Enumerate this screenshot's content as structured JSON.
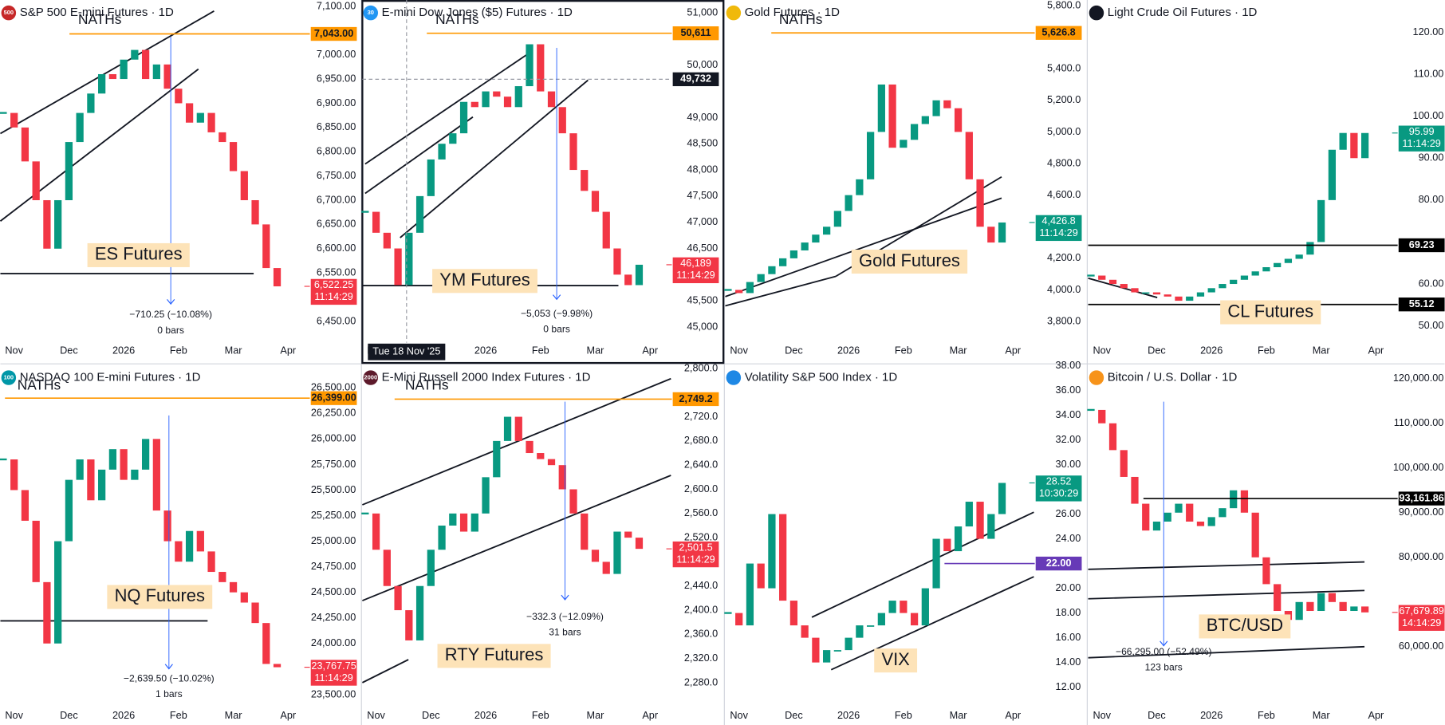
{
  "chart_data": [
    {
      "type": "candle",
      "icon": "500",
      "title": "S&P 500 E-mini Futures · 1D",
      "categories": [
        null,
        "Nov",
        null,
        null,
        null,
        null,
        "Dec",
        null,
        null,
        null,
        null,
        "2026",
        null,
        null,
        null,
        null,
        "Feb",
        null,
        null,
        null,
        null,
        "Mar",
        null,
        null,
        null,
        null,
        "Apr"
      ],
      "values": [
        6880,
        6850,
        6780,
        6700,
        6600,
        6700,
        6820,
        6880,
        6920,
        6960,
        6950,
        6990,
        7010,
        6950,
        6980,
        6930,
        6900,
        6860,
        6880,
        6840,
        6820,
        6760,
        6700,
        6650,
        6560,
        6522.25,
        null
      ],
      "up_color": "#089981",
      "down_color": "#f23645",
      "ylim": [
        6406,
        7113
      ],
      "yticks": [
        {
          "value": 7100,
          "label": "7,100.00"
        },
        {
          "value": 7000,
          "label": "7,000.00"
        },
        {
          "value": 6950,
          "label": "6,950.00"
        },
        {
          "value": 6900,
          "label": "6,900.00"
        },
        {
          "value": 6850,
          "label": "6,850.00"
        },
        {
          "value": 6800,
          "label": "6,800.00"
        },
        {
          "value": 6750,
          "label": "6,750.00"
        },
        {
          "value": 6700,
          "label": "6,700.00"
        },
        {
          "value": 6650,
          "label": "6,650.00"
        },
        {
          "value": 6600,
          "label": "6,600.00"
        },
        {
          "value": 6550,
          "label": "6,550.00"
        },
        {
          "value": 6450,
          "label": "6,450.00"
        }
      ],
      "levels": [
        {
          "value": 7043,
          "label": "7,043.00",
          "color": "#ff9800"
        }
      ],
      "last": {
        "value": 6522.25,
        "label": "6,522.25",
        "timer": "11:14:29",
        "color": "#f23645"
      },
      "annotations": {
        "label": "ES Futures",
        "high": "NATHs",
        "measure": "−710.25 (−10.08%)",
        "bars": "0 bars"
      }
    },
    {
      "type": "candle",
      "icon": "30",
      "title": "E-mini Dow Jones ($5) Futures · 1D",
      "categories": [
        null,
        "Nov",
        null,
        null,
        null,
        null,
        "Dec",
        null,
        null,
        null,
        null,
        "2026",
        null,
        null,
        null,
        null,
        "Feb",
        null,
        null,
        null,
        null,
        "Mar",
        null,
        null,
        null,
        null,
        "Apr"
      ],
      "values": [
        47200,
        46800,
        46500,
        45800,
        46800,
        47500,
        48200,
        48500,
        48700,
        49300,
        49200,
        49500,
        49400,
        49200,
        49600,
        50400,
        49500,
        49200,
        48700,
        48000,
        47600,
        47200,
        46500,
        46000,
        45800,
        46189,
        null
      ],
      "up_color": "#089981",
      "down_color": "#f23645",
      "ylim": [
        44700,
        51246
      ],
      "yticks": [
        {
          "value": 51000,
          "label": "51,000"
        },
        {
          "value": 50000,
          "label": "50,000"
        },
        {
          "value": 49000,
          "label": "49,000"
        },
        {
          "value": 48500,
          "label": "48,500"
        },
        {
          "value": 48000,
          "label": "48,000"
        },
        {
          "value": 47500,
          "label": "47,500"
        },
        {
          "value": 47000,
          "label": "47,000"
        },
        {
          "value": 46500,
          "label": "46,500"
        },
        {
          "value": 45500,
          "label": "45,500"
        },
        {
          "value": 45000,
          "label": "45,000"
        }
      ],
      "levels": [
        {
          "value": 50611,
          "label": "50,611",
          "color": "#ff9800"
        }
      ],
      "last": {
        "value": 46189,
        "label": "46,189",
        "timer": "11:14:29",
        "color": "#f23645"
      },
      "crosshair": {
        "value": 49732,
        "label": "49,732",
        "date": "Tue 18 Nov '25"
      },
      "annotations": {
        "label": "YM Futures",
        "high": "NATHs",
        "measure": "−5,053 (−9.98%)",
        "bars": "0 bars"
      }
    },
    {
      "type": "candle",
      "title": "Gold Futures · 1D",
      "categories": [
        null,
        "Nov",
        null,
        null,
        null,
        null,
        "Dec",
        null,
        null,
        null,
        null,
        "2026",
        null,
        null,
        null,
        null,
        "Feb",
        null,
        null,
        null,
        null,
        "Mar",
        null,
        null,
        null,
        null,
        "Apr"
      ],
      "values": [
        4000,
        3980,
        4050,
        4100,
        4150,
        4200,
        4250,
        4300,
        4350,
        4400,
        4500,
        4600,
        4700,
        5000,
        5300,
        4900,
        4950,
        5050,
        5100,
        5200,
        5150,
        5000,
        4700,
        4400,
        4300,
        4426.8,
        null
      ],
      "up_color": "#089981",
      "down_color": "#f23645",
      "ylim": [
        3666,
        5835
      ],
      "yticks": [
        {
          "value": 5800,
          "label": "5,800.0"
        },
        {
          "value": 5400,
          "label": "5,400.0"
        },
        {
          "value": 5200,
          "label": "5,200.0"
        },
        {
          "value": 5000,
          "label": "5,000.0"
        },
        {
          "value": 4800,
          "label": "4,800.0"
        },
        {
          "value": 4600,
          "label": "4,600.0"
        },
        {
          "value": 4200,
          "label": "4,200.0"
        },
        {
          "value": 4000,
          "label": "4,000.0"
        },
        {
          "value": 3800,
          "label": "3,800.0"
        }
      ],
      "levels": [
        {
          "value": 5626.8,
          "label": "5,626.8",
          "color": "#ff9800"
        }
      ],
      "last": {
        "value": 4426.8,
        "label": "4,426.8",
        "timer": "11:14:29",
        "color": "#089981"
      },
      "annotations": {
        "label": "Gold Futures",
        "high": "NATHs"
      }
    },
    {
      "type": "candle",
      "title": "Light Crude Oil Futures · 1D",
      "categories": [
        null,
        "Nov",
        null,
        null,
        null,
        null,
        "Dec",
        null,
        null,
        null,
        null,
        "2026",
        null,
        null,
        null,
        null,
        "Feb",
        null,
        null,
        null,
        null,
        "Mar",
        null,
        null,
        null,
        null,
        "Apr"
      ],
      "values": [
        62,
        61,
        60,
        59,
        58,
        58,
        57.5,
        57,
        56,
        57,
        58,
        59,
        60,
        61,
        62,
        63,
        64,
        65,
        66,
        67,
        70,
        80,
        92,
        96,
        90,
        95.99,
        null
      ],
      "up_color": "#089981",
      "down_color": "#f23645",
      "ylim": [
        46.0,
        127.7
      ],
      "yticks": [
        {
          "value": 120,
          "label": "120.00"
        },
        {
          "value": 110,
          "label": "110.00"
        },
        {
          "value": 100,
          "label": "100.00"
        },
        {
          "value": 90,
          "label": "90.00"
        },
        {
          "value": 80,
          "label": "80.00"
        },
        {
          "value": 60,
          "label": "60.00"
        },
        {
          "value": 50,
          "label": "50.00"
        }
      ],
      "levels": [
        {
          "value": 69.23,
          "label": "69.23",
          "color": "#000000"
        },
        {
          "value": 55.12,
          "label": "55.12",
          "color": "#000000"
        }
      ],
      "last": {
        "value": 95.99,
        "label": "95.99",
        "timer": "11:14:29",
        "color": "#089981"
      },
      "annotations": {
        "label": "CL Futures"
      }
    },
    {
      "type": "candle",
      "icon": "100",
      "title": "NASDAQ 100 E-mini Futures · 1D",
      "categories": [
        null,
        "Nov",
        null,
        null,
        null,
        null,
        "Dec",
        null,
        null,
        null,
        null,
        "2026",
        null,
        null,
        null,
        null,
        "Feb",
        null,
        null,
        null,
        null,
        "Mar",
        null,
        null,
        null,
        null,
        "Apr"
      ],
      "values": [
        25800,
        25500,
        25200,
        24600,
        24000,
        25000,
        25600,
        25800,
        25400,
        25700,
        25900,
        25600,
        25700,
        26000,
        25300,
        25000,
        24800,
        25100,
        24900,
        24700,
        24600,
        24500,
        24400,
        24200,
        23800,
        23767.75,
        null
      ],
      "up_color": "#089981",
      "down_color": "#f23645",
      "ylim": [
        23374,
        26725
      ],
      "yticks": [
        {
          "value": 26500,
          "label": "26,500.00"
        },
        {
          "value": 26250,
          "label": "26,250.00"
        },
        {
          "value": 26000,
          "label": "26,000.00"
        },
        {
          "value": 25750,
          "label": "25,750.00"
        },
        {
          "value": 25500,
          "label": "25,500.00"
        },
        {
          "value": 25250,
          "label": "25,250.00"
        },
        {
          "value": 25000,
          "label": "25,000.00"
        },
        {
          "value": 24750,
          "label": "24,750.00"
        },
        {
          "value": 24500,
          "label": "24,500.00"
        },
        {
          "value": 24250,
          "label": "24,250.00"
        },
        {
          "value": 24000,
          "label": "24,000.00"
        },
        {
          "value": 23500,
          "label": "23,500.00"
        }
      ],
      "levels": [
        {
          "value": 26399,
          "label": "26,399.00",
          "color": "#ff9800"
        }
      ],
      "last": {
        "value": 23767.75,
        "label": "23,767.75",
        "timer": "11:14:29",
        "color": "#f23645"
      },
      "annotations": {
        "label": "NQ Futures",
        "high": "NATHs",
        "measure": "−2,639.50 (−10.02%)",
        "bars": "1 bars"
      }
    },
    {
      "type": "candle",
      "icon": "2000",
      "title": "E-Mini Russell 2000 Index Futures · 1D",
      "categories": [
        null,
        "Nov",
        null,
        null,
        null,
        null,
        "Dec",
        null,
        null,
        null,
        null,
        "2026",
        null,
        null,
        null,
        null,
        "Feb",
        null,
        null,
        null,
        null,
        "Mar",
        null,
        null,
        null,
        null,
        "Apr"
      ],
      "values": [
        2560,
        2500,
        2440,
        2400,
        2350,
        2440,
        2500,
        2540,
        2560,
        2530,
        2560,
        2620,
        2680,
        2720,
        2680,
        2660,
        2650,
        2640,
        2600,
        2560,
        2500,
        2480,
        2460,
        2530,
        2520,
        2501.5,
        null
      ],
      "up_color": "#089981",
      "down_color": "#f23645",
      "ylim": [
        2239,
        2806
      ],
      "yticks": [
        {
          "value": 2800,
          "label": "2,800.0"
        },
        {
          "value": 2720,
          "label": "2,720.0"
        },
        {
          "value": 2680,
          "label": "2,680.0"
        },
        {
          "value": 2640,
          "label": "2,640.0"
        },
        {
          "value": 2600,
          "label": "2,600.0"
        },
        {
          "value": 2560,
          "label": "2,560.0"
        },
        {
          "value": 2520,
          "label": "2,520.0"
        },
        {
          "value": 2440,
          "label": "2,440.0"
        },
        {
          "value": 2400,
          "label": "2,400.0"
        },
        {
          "value": 2360,
          "label": "2,360.0"
        },
        {
          "value": 2320,
          "label": "2,320.0"
        },
        {
          "value": 2280,
          "label": "2,280.0"
        }
      ],
      "levels": [
        {
          "value": 2749.2,
          "label": "2,749.2",
          "color": "#ff9800"
        }
      ],
      "last": {
        "value": 2501.5,
        "label": "2,501.5",
        "timer": "11:14:29",
        "color": "#f23645"
      },
      "annotations": {
        "label": "RTY Futures",
        "high": "NATHs",
        "measure": "−332.3 (−12.09%)",
        "bars": "31 bars"
      }
    },
    {
      "type": "candle",
      "title": "Volatility S&P 500 Index · 1D",
      "categories": [
        null,
        "Nov",
        null,
        null,
        null,
        null,
        "Dec",
        null,
        null,
        null,
        null,
        "2026",
        null,
        null,
        null,
        null,
        "Feb",
        null,
        null,
        null,
        null,
        "Mar",
        null,
        null,
        null,
        null,
        "Apr"
      ],
      "values": [
        18,
        17,
        22,
        20,
        26,
        19,
        17,
        16,
        14,
        15,
        15,
        16,
        17,
        17,
        18,
        19,
        18,
        17,
        20,
        24,
        23,
        25,
        27,
        24,
        26,
        28.52,
        null
      ],
      "up_color": "#089981",
      "down_color": "#f23645",
      "ylim": [
        10.36,
        38.07
      ],
      "yticks": [
        {
          "value": 38,
          "label": "38.00"
        },
        {
          "value": 36,
          "label": "36.00"
        },
        {
          "value": 34,
          "label": "34.00"
        },
        {
          "value": 32,
          "label": "32.00"
        },
        {
          "value": 30,
          "label": "30.00"
        },
        {
          "value": 26,
          "label": "26.00"
        },
        {
          "value": 24,
          "label": "24.00"
        },
        {
          "value": 20,
          "label": "20.00"
        },
        {
          "value": 18,
          "label": "18.00"
        },
        {
          "value": 16,
          "label": "16.00"
        },
        {
          "value": 14,
          "label": "14.00"
        },
        {
          "value": 12,
          "label": "12.00"
        }
      ],
      "levels": [
        {
          "value": 22,
          "label": "22.00",
          "color": "#673ab7"
        }
      ],
      "last": {
        "value": 28.52,
        "label": "28.52",
        "timer": "10:30:29",
        "color": "#089981"
      },
      "annotations": {
        "label": "VIX"
      }
    },
    {
      "type": "candle",
      "title": "Bitcoin / U.S. Dollar · 1D",
      "categories": [
        null,
        "Nov",
        null,
        null,
        null,
        null,
        "Dec",
        null,
        null,
        null,
        null,
        "2026",
        null,
        null,
        null,
        null,
        "Feb",
        null,
        null,
        null,
        null,
        "Mar",
        null,
        null,
        null,
        null,
        "Apr"
      ],
      "values": [
        113000,
        110000,
        104000,
        98000,
        92000,
        86000,
        88000,
        90000,
        92000,
        88000,
        87000,
        89000,
        91000,
        95000,
        90000,
        80000,
        74000,
        68000,
        66000,
        70000,
        68000,
        72000,
        70000,
        68000,
        69000,
        67679.89,
        null
      ],
      "up_color": "#089981",
      "down_color": "#f23645",
      "ylim": [
        46392,
        123093
      ],
      "yticks": [
        {
          "value": 120000,
          "label": "120,000.00"
        },
        {
          "value": 110000,
          "label": "110,000.00"
        },
        {
          "value": 100000,
          "label": "100,000.00"
        },
        {
          "value": 90000,
          "label": "90,000.00"
        },
        {
          "value": 80000,
          "label": "80,000.00"
        },
        {
          "value": 60000,
          "label": "60,000.00"
        }
      ],
      "levels": [
        {
          "value": 93161.86,
          "label": "93,161.86",
          "color": "#000000"
        }
      ],
      "last": {
        "value": 67679.89,
        "label": "67,679.89",
        "timer": "14:14:29",
        "color": "#f23645"
      },
      "annotations": {
        "label": "BTC/USD",
        "measure": "−66,295.00 (−52.49%)",
        "bars": "123 bars"
      }
    }
  ]
}
